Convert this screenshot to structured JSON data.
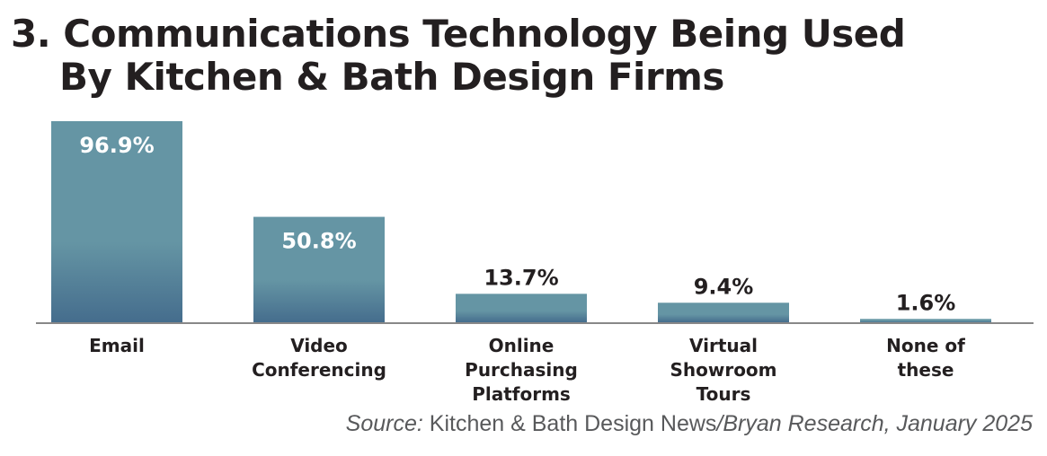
{
  "chart_data": {
    "type": "bar",
    "title_line1": "3. Communications Technology Being Used",
    "title_line2": "By Kitchen & Bath Design Firms",
    "categories": [
      [
        "Email"
      ],
      [
        "Video",
        "Conferencing"
      ],
      [
        "Online",
        "Purchasing",
        "Platforms"
      ],
      [
        "Virtual",
        "Showroom",
        "Tours"
      ],
      [
        "None of",
        "these"
      ]
    ],
    "values": [
      96.9,
      50.8,
      13.7,
      9.4,
      1.6
    ],
    "value_labels": [
      "96.9%",
      "50.8%",
      "13.7%",
      "9.4%",
      "1.6%"
    ],
    "ylim": [
      0,
      100
    ],
    "grid": false,
    "colors": {
      "bar_top": "#6595a4",
      "bar_bottom": "#456d8d",
      "axis": "#888888"
    },
    "source": {
      "prefix": "Source:",
      "main": "Kitchen & Bath Design News",
      "suffix": "/Bryan Research, January 2025"
    }
  }
}
